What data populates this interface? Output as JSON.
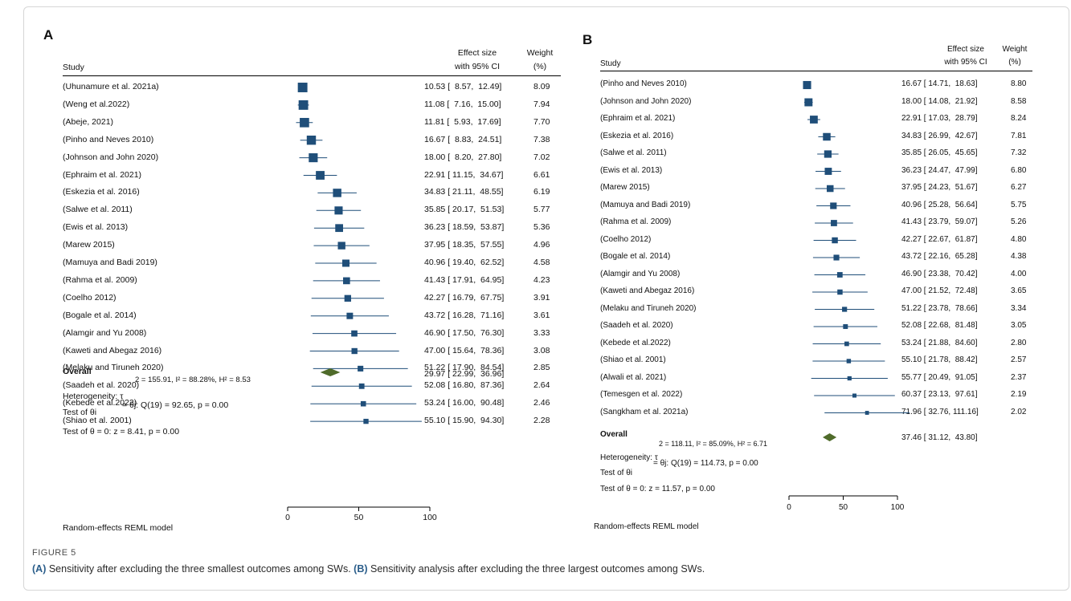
{
  "caption": {
    "figure_label": "FIGURE 5",
    "part_a_tag": "(A)",
    "part_a_text": " Sensitivity after excluding the three smallest outcomes among SWs. ",
    "part_b_tag": "(B)",
    "part_b_text": " Sensitivity analysis after excluding the three largest outcomes among SWs."
  },
  "colors": {
    "marker": "#1f4e79",
    "diamond": "#4f6b2a",
    "line": "#000000"
  },
  "headers": {
    "study": "Study",
    "effect_line1": "Effect size",
    "effect_line2": "with 95% CI",
    "weight_line1": "Weight",
    "weight_line2": "(%)"
  },
  "chart_data": [
    {
      "type": "forest",
      "panel": "A",
      "xlim": [
        0,
        100
      ],
      "xticks": [
        0,
        50,
        100
      ],
      "studies": [
        {
          "label": "(Uhunamure et al. 2021a)",
          "es": 10.53,
          "lo": 8.57,
          "hi": 12.49,
          "weight": 8.09,
          "ci_text": "10.53 [  8.57,  12.49]",
          "weight_text": "8.09"
        },
        {
          "label": "(Weng et al.2022)",
          "es": 11.08,
          "lo": 7.16,
          "hi": 15.0,
          "weight": 7.94,
          "ci_text": "11.08 [  7.16,  15.00]",
          "weight_text": "7.94"
        },
        {
          "label": "(Abeje, 2021)",
          "es": 11.81,
          "lo": 5.93,
          "hi": 17.69,
          "weight": 7.7,
          "ci_text": "11.81 [  5.93,  17.69]",
          "weight_text": "7.70"
        },
        {
          "label": "(Pinho and Neves 2010)",
          "es": 16.67,
          "lo": 8.83,
          "hi": 24.51,
          "weight": 7.38,
          "ci_text": "16.67 [  8.83,  24.51]",
          "weight_text": "7.38"
        },
        {
          "label": "(Johnson and John 2020)",
          "es": 18.0,
          "lo": 8.2,
          "hi": 27.8,
          "weight": 7.02,
          "ci_text": "18.00 [  8.20,  27.80]",
          "weight_text": "7.02"
        },
        {
          "label": "(Ephraim et al. 2021)",
          "es": 22.91,
          "lo": 11.15,
          "hi": 34.67,
          "weight": 6.61,
          "ci_text": "22.91 [ 11.15,  34.67]",
          "weight_text": "6.61"
        },
        {
          "label": "(Eskezia et al. 2016)",
          "es": 34.83,
          "lo": 21.11,
          "hi": 48.55,
          "weight": 6.19,
          "ci_text": "34.83 [ 21.11,  48.55]",
          "weight_text": "6.19"
        },
        {
          "label": "(Salwe et al. 2011)",
          "es": 35.85,
          "lo": 20.17,
          "hi": 51.53,
          "weight": 5.77,
          "ci_text": "35.85 [ 20.17,  51.53]",
          "weight_text": "5.77"
        },
        {
          "label": "(Ewis et al. 2013)",
          "es": 36.23,
          "lo": 18.59,
          "hi": 53.87,
          "weight": 5.36,
          "ci_text": "36.23 [ 18.59,  53.87]",
          "weight_text": "5.36"
        },
        {
          "label": "(Marew 2015)",
          "es": 37.95,
          "lo": 18.35,
          "hi": 57.55,
          "weight": 4.96,
          "ci_text": "37.95 [ 18.35,  57.55]",
          "weight_text": "4.96"
        },
        {
          "label": "(Mamuya and Badi 2019)",
          "es": 40.96,
          "lo": 19.4,
          "hi": 62.52,
          "weight": 4.58,
          "ci_text": "40.96 [ 19.40,  62.52]",
          "weight_text": "4.58"
        },
        {
          "label": "(Rahma et al. 2009)",
          "es": 41.43,
          "lo": 17.91,
          "hi": 64.95,
          "weight": 4.23,
          "ci_text": "41.43 [ 17.91,  64.95]",
          "weight_text": "4.23"
        },
        {
          "label": "(Coelho 2012)",
          "es": 42.27,
          "lo": 16.79,
          "hi": 67.75,
          "weight": 3.91,
          "ci_text": "42.27 [ 16.79,  67.75]",
          "weight_text": "3.91"
        },
        {
          "label": "(Bogale et al. 2014)",
          "es": 43.72,
          "lo": 16.28,
          "hi": 71.16,
          "weight": 3.61,
          "ci_text": "43.72 [ 16.28,  71.16]",
          "weight_text": "3.61"
        },
        {
          "label": "(Alamgir and Yu 2008)",
          "es": 46.9,
          "lo": 17.5,
          "hi": 76.3,
          "weight": 3.33,
          "ci_text": "46.90 [ 17.50,  76.30]",
          "weight_text": "3.33"
        },
        {
          "label": "(Kaweti and Abegaz 2016)",
          "es": 47.0,
          "lo": 15.64,
          "hi": 78.36,
          "weight": 3.08,
          "ci_text": "47.00 [ 15.64,  78.36]",
          "weight_text": "3.08"
        },
        {
          "label": "(Melaku and Tiruneh 2020)",
          "es": 51.22,
          "lo": 17.9,
          "hi": 84.54,
          "weight": 2.85,
          "ci_text": "51.22 [ 17.90,  84.54]",
          "weight_text": "2.85"
        },
        {
          "label": "(Saadeh et al. 2020)",
          "es": 52.08,
          "lo": 16.8,
          "hi": 87.36,
          "weight": 2.64,
          "ci_text": "52.08 [ 16.80,  87.36]",
          "weight_text": "2.64"
        },
        {
          "label": "(Kebede et al.2022)",
          "es": 53.24,
          "lo": 16.0,
          "hi": 90.48,
          "weight": 2.46,
          "ci_text": "53.24 [ 16.00,  90.48]",
          "weight_text": "2.46"
        },
        {
          "label": "(Shiao et al. 2001)",
          "es": 55.1,
          "lo": 15.9,
          "hi": 94.3,
          "weight": 2.28,
          "ci_text": "55.10 [ 15.90,  94.30]",
          "weight_text": "2.28"
        }
      ],
      "overall": {
        "label": "Overall",
        "es": 29.97,
        "lo": 22.99,
        "hi": 36.96,
        "ci_text": "29.97 [ 22.99,  36.96]"
      },
      "stats": {
        "tau_line": "2 = 155.91, I² = 88.28%, H² = 8.53",
        "heterogeneity": "Heterogeneity: τ",
        "q_line": "= θj: Q(19) = 92.65, p = 0.00",
        "test_theta_i": "Test of θi",
        "test_theta_0": "Test of θ = 0: z = 8.41, p = 0.00"
      },
      "model": "Random-effects REML model"
    },
    {
      "type": "forest",
      "panel": "B",
      "xlim": [
        0,
        100
      ],
      "xticks": [
        0,
        50,
        100
      ],
      "studies": [
        {
          "label": "(Pinho and Neves 2010)",
          "es": 16.67,
          "lo": 14.71,
          "hi": 18.63,
          "weight": 8.8,
          "ci_text": "16.67 [ 14.71,  18.63]",
          "weight_text": "8.80"
        },
        {
          "label": "(Johnson and John 2020)",
          "es": 18.0,
          "lo": 14.08,
          "hi": 21.92,
          "weight": 8.58,
          "ci_text": "18.00 [ 14.08,  21.92]",
          "weight_text": "8.58"
        },
        {
          "label": "(Ephraim et al. 2021)",
          "es": 22.91,
          "lo": 17.03,
          "hi": 28.79,
          "weight": 8.24,
          "ci_text": "22.91 [ 17.03,  28.79]",
          "weight_text": "8.24"
        },
        {
          "label": "(Eskezia et al. 2016)",
          "es": 34.83,
          "lo": 26.99,
          "hi": 42.67,
          "weight": 7.81,
          "ci_text": "34.83 [ 26.99,  42.67]",
          "weight_text": "7.81"
        },
        {
          "label": "(Salwe et al. 2011)",
          "es": 35.85,
          "lo": 26.05,
          "hi": 45.65,
          "weight": 7.32,
          "ci_text": "35.85 [ 26.05,  45.65]",
          "weight_text": "7.32"
        },
        {
          "label": "(Ewis et al. 2013)",
          "es": 36.23,
          "lo": 24.47,
          "hi": 47.99,
          "weight": 6.8,
          "ci_text": "36.23 [ 24.47,  47.99]",
          "weight_text": "6.80"
        },
        {
          "label": "(Marew 2015)",
          "es": 37.95,
          "lo": 24.23,
          "hi": 51.67,
          "weight": 6.27,
          "ci_text": "37.95 [ 24.23,  51.67]",
          "weight_text": "6.27"
        },
        {
          "label": "(Mamuya and Badi 2019)",
          "es": 40.96,
          "lo": 25.28,
          "hi": 56.64,
          "weight": 5.75,
          "ci_text": "40.96 [ 25.28,  56.64]",
          "weight_text": "5.75"
        },
        {
          "label": "(Rahma et al. 2009)",
          "es": 41.43,
          "lo": 23.79,
          "hi": 59.07,
          "weight": 5.26,
          "ci_text": "41.43 [ 23.79,  59.07]",
          "weight_text": "5.26"
        },
        {
          "label": "(Coelho 2012)",
          "es": 42.27,
          "lo": 22.67,
          "hi": 61.87,
          "weight": 4.8,
          "ci_text": "42.27 [ 22.67,  61.87]",
          "weight_text": "4.80"
        },
        {
          "label": "(Bogale et al. 2014)",
          "es": 43.72,
          "lo": 22.16,
          "hi": 65.28,
          "weight": 4.38,
          "ci_text": "43.72 [ 22.16,  65.28]",
          "weight_text": "4.38"
        },
        {
          "label": "(Alamgir and Yu 2008)",
          "es": 46.9,
          "lo": 23.38,
          "hi": 70.42,
          "weight": 4.0,
          "ci_text": "46.90 [ 23.38,  70.42]",
          "weight_text": "4.00"
        },
        {
          "label": "(Kaweti and Abegaz 2016)",
          "es": 47.0,
          "lo": 21.52,
          "hi": 72.48,
          "weight": 3.65,
          "ci_text": "47.00 [ 21.52,  72.48]",
          "weight_text": "3.65"
        },
        {
          "label": "(Melaku and Tiruneh 2020)",
          "es": 51.22,
          "lo": 23.78,
          "hi": 78.66,
          "weight": 3.34,
          "ci_text": "51.22 [ 23.78,  78.66]",
          "weight_text": "3.34"
        },
        {
          "label": "(Saadeh et al. 2020)",
          "es": 52.08,
          "lo": 22.68,
          "hi": 81.48,
          "weight": 3.05,
          "ci_text": "52.08 [ 22.68,  81.48]",
          "weight_text": "3.05"
        },
        {
          "label": "(Kebede et al.2022)",
          "es": 53.24,
          "lo": 21.88,
          "hi": 84.6,
          "weight": 2.8,
          "ci_text": "53.24 [ 21.88,  84.60]",
          "weight_text": "2.80"
        },
        {
          "label": "(Shiao et al. 2001)",
          "es": 55.1,
          "lo": 21.78,
          "hi": 88.42,
          "weight": 2.57,
          "ci_text": "55.10 [ 21.78,  88.42]",
          "weight_text": "2.57"
        },
        {
          "label": "(Alwali et al. 2021)",
          "es": 55.77,
          "lo": 20.49,
          "hi": 91.05,
          "weight": 2.37,
          "ci_text": "55.77 [ 20.49,  91.05]",
          "weight_text": "2.37"
        },
        {
          "label": "(Temesgen et al. 2022)",
          "es": 60.37,
          "lo": 23.13,
          "hi": 97.61,
          "weight": 2.19,
          "ci_text": "60.37 [ 23.13,  97.61]",
          "weight_text": "2.19"
        },
        {
          "label": "(Sangkham et al. 2021a)",
          "es": 71.96,
          "lo": 32.76,
          "hi": 111.16,
          "weight": 2.02,
          "ci_text": "71.96 [ 32.76, 111.16]",
          "weight_text": "2.02"
        }
      ],
      "overall": {
        "label": "Overall",
        "es": 37.46,
        "lo": 31.12,
        "hi": 43.8,
        "ci_text": "37.46 [ 31.12,  43.80]"
      },
      "stats": {
        "tau_line": "2 = 118.11, I² = 85.09%, H² = 6.71",
        "heterogeneity": "Heterogeneity: τ",
        "q_line": "= θj: Q(19) = 114.73, p = 0.00",
        "test_theta_i": "Test of θi",
        "test_theta_0": "Test of θ = 0: z = 11.57, p = 0.00"
      },
      "model": "Random-effects REML model"
    }
  ]
}
